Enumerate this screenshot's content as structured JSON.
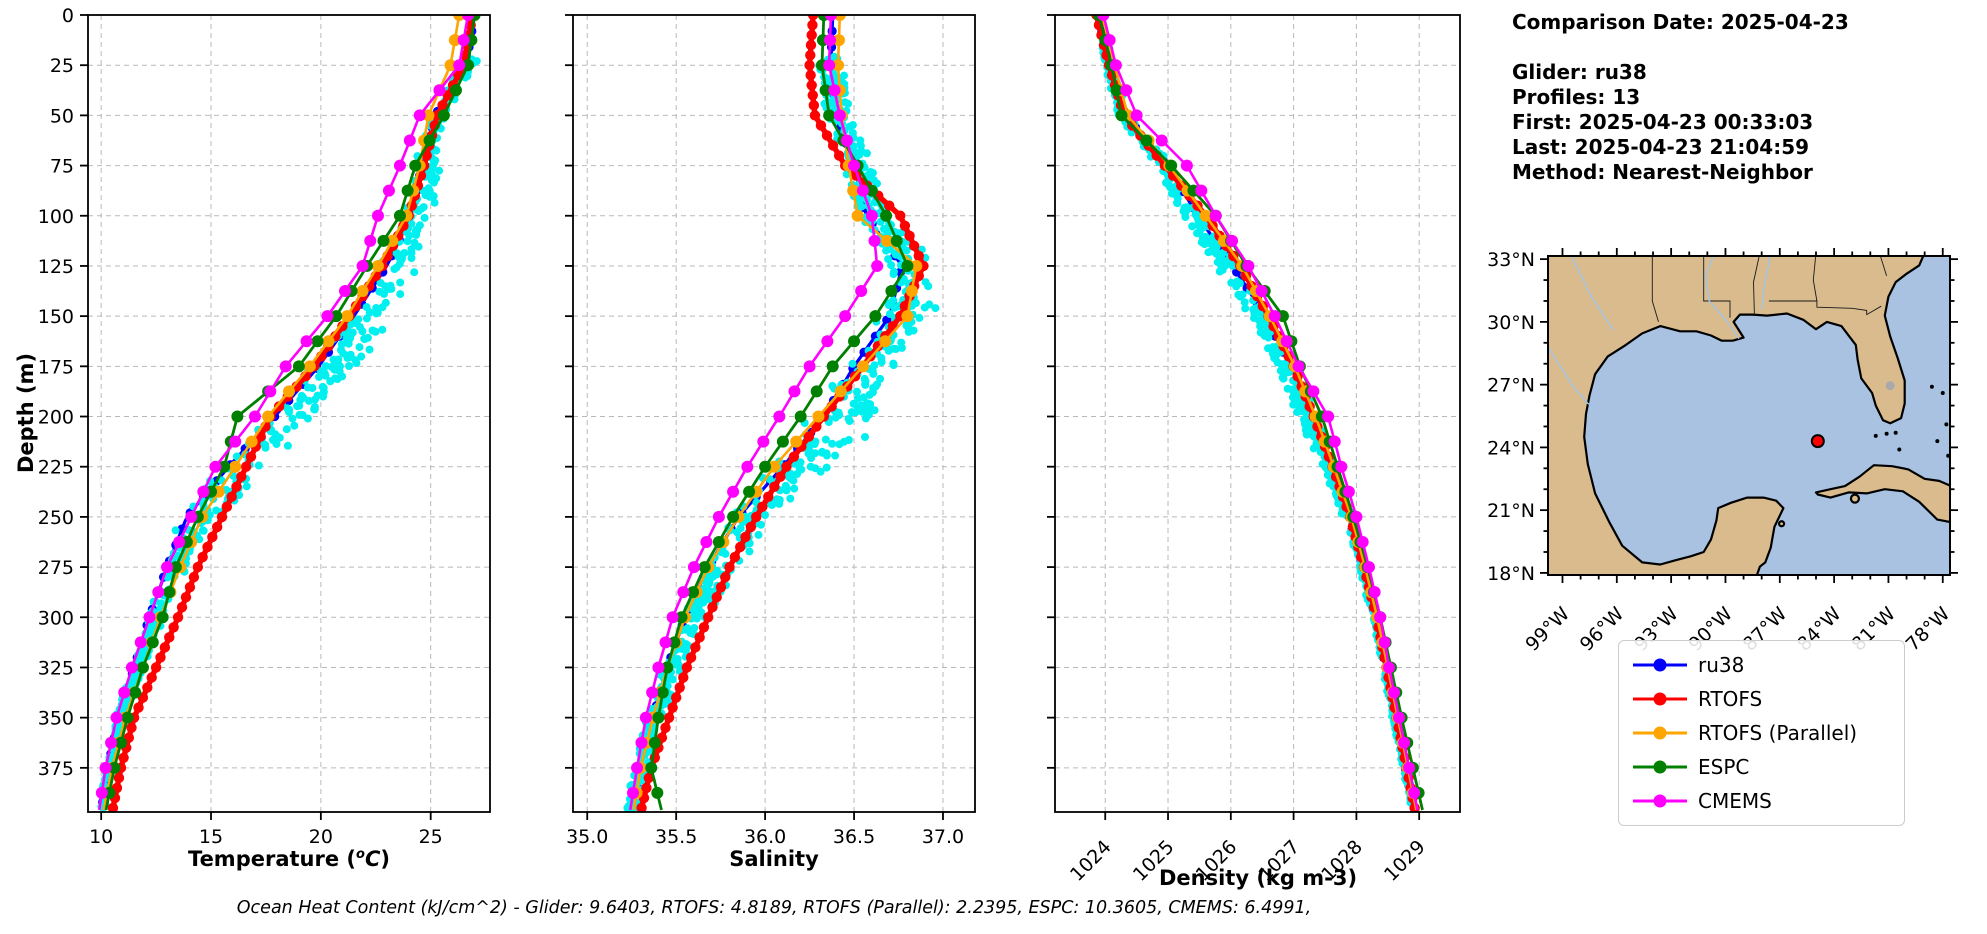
{
  "info": {
    "comparison_date": "Comparison Date: 2025-04-23",
    "glider": "Glider: ru38",
    "profiles": "Profiles: 13",
    "first": "First: 2025-04-23 00:33:03",
    "last": "Last: 2025-04-23 21:04:59",
    "method": "Method: Nearest-Neighbor"
  },
  "caption": "Ocean Heat Content (kJ/cm^2) - Glider: 9.6403,  RTOFS: 4.8189,  RTOFS (Parallel): 2.2395,  ESPC: 10.3605,  CMEMS: 6.4991,",
  "axes": {
    "depth_label": "Depth (m)",
    "depth_ticks": [
      0,
      25,
      50,
      75,
      100,
      125,
      150,
      175,
      200,
      225,
      250,
      275,
      300,
      325,
      350,
      375
    ],
    "temp_label_prefix": "Temperature (",
    "temp_label_sup": "o",
    "temp_label_italic": "C",
    "temp_label_close": ")",
    "sal_label": "Salinity",
    "dens_label": "Density (kg m-3)"
  },
  "legend": {
    "items": [
      {
        "label": "ru38",
        "color": "#0000ff"
      },
      {
        "label": "RTOFS",
        "color": "#ff0000"
      },
      {
        "label": "RTOFS (Parallel)",
        "color": "#ffa500"
      },
      {
        "label": "ESPC",
        "color": "#008000"
      },
      {
        "label": "CMEMS",
        "color": "#ff00ff"
      }
    ]
  },
  "colors": {
    "scatter": "#00f0f0",
    "grid": "#b9b9b9",
    "axis": "#000000"
  },
  "chart_data": [
    {
      "type": "line",
      "title": "",
      "xlabel": "Temperature (°C)",
      "ylabel": "Depth (m)",
      "x_ticks": [
        10,
        15,
        20,
        25
      ],
      "x_tick_labels": [
        "10",
        "15",
        "20",
        "25"
      ],
      "x_range": [
        9.4,
        27.7
      ],
      "depth_range": [
        0,
        397
      ],
      "grid": true,
      "depths": [
        0,
        25,
        50,
        75,
        100,
        125,
        150,
        175,
        200,
        225,
        250,
        275,
        300,
        325,
        350,
        375,
        397
      ],
      "series": [
        {
          "name": "ru38",
          "color": "#0000ff",
          "values": [
            27.0,
            26.6,
            25.2,
            24.6,
            24.1,
            23.0,
            21.5,
            19.9,
            17.9,
            15.8,
            13.9,
            13.0,
            12.2,
            11.5,
            10.8,
            10.3,
            10.0
          ]
        },
        {
          "name": "RTOFS",
          "color": "#ff0000",
          "values": [
            26.9,
            26.5,
            25.3,
            24.7,
            24.0,
            22.8,
            21.3,
            19.7,
            17.7,
            16.6,
            15.5,
            14.4,
            13.5,
            12.5,
            11.5,
            10.9,
            10.5
          ]
        },
        {
          "name": "RTOFS (Parallel)",
          "color": "#ffa500",
          "values": [
            26.3,
            25.9,
            24.9,
            24.5,
            23.9,
            22.6,
            21.2,
            19.5,
            17.6,
            16.1,
            14.6,
            13.6,
            12.7,
            11.9,
            11.1,
            10.5,
            10.1
          ]
        },
        {
          "name": "ESPC",
          "color": "#008000",
          "values": [
            27.0,
            26.7,
            25.6,
            24.3,
            23.6,
            22.1,
            20.7,
            19.0,
            16.2,
            15.6,
            14.4,
            13.4,
            12.8,
            11.9,
            11.2,
            10.6,
            10.2
          ]
        },
        {
          "name": "CMEMS",
          "color": "#ff00ff",
          "values": [
            26.7,
            26.3,
            24.5,
            23.6,
            22.6,
            21.9,
            20.3,
            18.4,
            17.0,
            15.2,
            14.1,
            13.0,
            12.2,
            11.4,
            10.7,
            10.2,
            9.9
          ]
        }
      ],
      "scatter": {
        "name": "glider raw points",
        "count": 560,
        "r": 4,
        "depth_min": 22,
        "depth_max": 396,
        "amp": 0.55,
        "deep_amp": 0.18,
        "bulge_amp": 1.5,
        "bulge_center": 190,
        "bulge_width": 80
      }
    },
    {
      "type": "line",
      "title": "",
      "xlabel": "Salinity",
      "ylabel": "Depth (m)",
      "x_ticks": [
        35.0,
        35.5,
        36.0,
        36.5,
        37.0
      ],
      "x_tick_labels": [
        "35.0",
        "35.5",
        "36.0",
        "36.5",
        "37.0"
      ],
      "x_range": [
        34.92,
        37.18
      ],
      "depth_range": [
        0,
        397
      ],
      "grid": true,
      "depths": [
        0,
        25,
        50,
        75,
        100,
        125,
        150,
        175,
        200,
        225,
        250,
        275,
        300,
        325,
        350,
        375,
        397
      ],
      "series": [
        {
          "name": "ru38",
          "color": "#0000ff",
          "values": [
            36.38,
            36.37,
            36.4,
            36.5,
            36.57,
            36.77,
            36.7,
            36.5,
            36.33,
            36.1,
            35.85,
            35.68,
            35.55,
            35.45,
            35.37,
            35.3,
            35.25
          ]
        },
        {
          "name": "RTOFS",
          "color": "#ff0000",
          "values": [
            36.27,
            36.25,
            36.28,
            36.45,
            36.76,
            36.89,
            36.76,
            36.55,
            36.33,
            36.12,
            35.95,
            35.8,
            35.68,
            35.56,
            35.46,
            35.36,
            35.3
          ]
        },
        {
          "name": "RTOFS (Parallel)",
          "color": "#ffa500",
          "values": [
            36.42,
            36.41,
            36.43,
            36.47,
            36.52,
            36.85,
            36.8,
            36.55,
            36.3,
            36.05,
            35.85,
            35.68,
            35.55,
            35.45,
            35.37,
            35.3,
            35.26
          ]
        },
        {
          "name": "ESPC",
          "color": "#008000",
          "values": [
            36.33,
            36.32,
            36.36,
            36.52,
            36.68,
            36.8,
            36.62,
            36.38,
            36.2,
            36.0,
            35.82,
            35.66,
            35.53,
            35.45,
            35.4,
            35.36,
            35.42
          ]
        },
        {
          "name": "CMEMS",
          "color": "#ff00ff",
          "values": [
            36.37,
            36.36,
            36.42,
            36.5,
            36.6,
            36.63,
            36.45,
            36.25,
            36.08,
            35.9,
            35.74,
            35.6,
            35.48,
            35.4,
            35.33,
            35.28,
            35.24
          ]
        }
      ],
      "scatter": {
        "name": "glider raw points",
        "count": 620,
        "r": 4,
        "depth_min": 20,
        "depth_max": 396,
        "amp": 0.11,
        "deep_amp": 0.05,
        "bulge_amp": 0.22,
        "bulge_center": 205,
        "bulge_width": 70
      }
    },
    {
      "type": "line",
      "title": "",
      "xlabel": "Density (kg m-3)",
      "ylabel": "Depth (m)",
      "x_ticks": [
        1024,
        1025,
        1026,
        1027,
        1028,
        1029
      ],
      "x_tick_labels": [
        "1024",
        "1025",
        "1026",
        "1027",
        "1028",
        "1029"
      ],
      "x_range": [
        1023.2,
        1029.65
      ],
      "depth_range": [
        0,
        397
      ],
      "grid": true,
      "depths": [
        0,
        25,
        50,
        75,
        100,
        125,
        150,
        175,
        200,
        225,
        250,
        275,
        300,
        325,
        350,
        375,
        397
      ],
      "series": [
        {
          "name": "ru38",
          "color": "#0000ff",
          "values": [
            1023.88,
            1024.08,
            1024.32,
            1025.0,
            1025.47,
            1026.03,
            1026.55,
            1026.95,
            1027.3,
            1027.6,
            1027.88,
            1028.1,
            1028.3,
            1028.46,
            1028.62,
            1028.78,
            1028.92
          ]
        },
        {
          "name": "RTOFS",
          "color": "#ff0000",
          "values": [
            1023.86,
            1024.06,
            1024.3,
            1024.95,
            1025.6,
            1026.15,
            1026.6,
            1027.0,
            1027.32,
            1027.62,
            1027.9,
            1028.12,
            1028.32,
            1028.48,
            1028.64,
            1028.8,
            1028.94
          ]
        },
        {
          "name": "RTOFS (Parallel)",
          "color": "#ffa500",
          "values": [
            1023.95,
            1024.15,
            1024.36,
            1025.02,
            1025.6,
            1026.18,
            1026.62,
            1027.02,
            1027.35,
            1027.64,
            1027.92,
            1028.14,
            1028.33,
            1028.5,
            1028.66,
            1028.82,
            1028.96
          ]
        },
        {
          "name": "ESPC",
          "color": "#008000",
          "values": [
            1023.9,
            1024.1,
            1024.26,
            1025.05,
            1025.76,
            1026.25,
            1026.83,
            1027.1,
            1027.45,
            1027.7,
            1027.95,
            1028.18,
            1028.38,
            1028.55,
            1028.72,
            1028.9,
            1029.06
          ]
        },
        {
          "name": "CMEMS",
          "color": "#ff00ff",
          "values": [
            1023.97,
            1024.17,
            1024.5,
            1025.3,
            1025.76,
            1026.28,
            1026.7,
            1027.08,
            1027.55,
            1027.76,
            1028.0,
            1028.2,
            1028.38,
            1028.52,
            1028.68,
            1028.84,
            1028.98
          ]
        }
      ],
      "scatter": {
        "name": "glider raw points",
        "count": 560,
        "r": 4,
        "depth_min": 15,
        "depth_max": 396,
        "amp": 0.12,
        "deep_amp": 0.05,
        "bulge_amp": -0.22,
        "bulge_center": 140,
        "bulge_width": 60
      }
    }
  ],
  "map": {
    "land_color": "#d9bb8d",
    "water_color": "#a9c2e2",
    "coast_color": "#000000",
    "river_color": "#9fc5e8",
    "state_border_color": "#1a1a1a",
    "lake_color": "#a9a9a9",
    "lat_ticks": [
      {
        "label": "33°N",
        "value": 33
      },
      {
        "label": "30°N",
        "value": 30
      },
      {
        "label": "27°N",
        "value": 27
      },
      {
        "label": "24°N",
        "value": 24
      },
      {
        "label": "21°N",
        "value": 21
      },
      {
        "label": "18°N",
        "value": 18
      }
    ],
    "lon_ticks": [
      {
        "label": "99°W",
        "value": 99
      },
      {
        "label": "96°W",
        "value": 96
      },
      {
        "label": "93°W",
        "value": 93
      },
      {
        "label": "90°W",
        "value": 90
      },
      {
        "label": "87°W",
        "value": 87
      },
      {
        "label": "84°W",
        "value": 84
      },
      {
        "label": "81°W",
        "value": 81
      },
      {
        "label": "78°W",
        "value": 78
      }
    ],
    "marker": {
      "lon": 84.9,
      "lat": 24.3,
      "color": "#ff0000"
    }
  }
}
